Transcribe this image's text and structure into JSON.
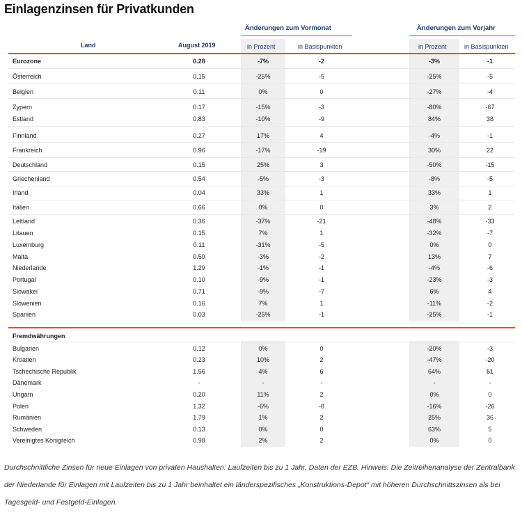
{
  "title": "Einlagenzinsen für Privatkunden",
  "headers": {
    "group_vormonat": "Änderungen zum Vormonat",
    "group_vorjahr": "Änderungen zum Vorjahr",
    "land": "Land",
    "august": "August 2019",
    "vm_prozent": "in Prozent",
    "vm_basis": "in Basispunkten",
    "vj_prozent": "in Prozent",
    "vj_basis": "in Basispunkten"
  },
  "section1": {
    "label": "Eurozone",
    "values": [
      "0.28",
      "-7%",
      "-2",
      "-3%",
      "-1"
    ],
    "rows": [
      [
        "Österreich",
        "0.15",
        "-25%",
        "-5",
        "-25%",
        "-5"
      ],
      [
        "Belgien",
        "0.11",
        "0%",
        "0",
        "-27%",
        "-4"
      ],
      [
        "Zypern",
        "0.17",
        "-15%",
        "-3",
        "-80%",
        "-67"
      ],
      [
        "Estland",
        "0.83",
        "-10%",
        "-9",
        "84%",
        "38"
      ],
      [
        "Finnland",
        "0.27",
        "17%",
        "4",
        "-4%",
        "-1"
      ],
      [
        "Frankreich",
        "0.96",
        "-17%",
        "-19",
        "30%",
        "22"
      ],
      [
        "Deutschland",
        "0.15",
        "25%",
        "3",
        "-50%",
        "-15"
      ],
      [
        "Griechenland",
        "0.54",
        "-5%",
        "-3",
        "-8%",
        "-5"
      ],
      [
        "Irland",
        "0.04",
        "33%",
        "1",
        "33%",
        "1"
      ],
      [
        "Italien",
        "0.66",
        "0%",
        "0",
        "3%",
        "2"
      ],
      [
        "Lettland",
        "0.36",
        "-37%",
        "-21",
        "-48%",
        "-33"
      ],
      [
        "Litauen",
        "0.15",
        "7%",
        "1",
        "-32%",
        "-7"
      ],
      [
        "Luxemburg",
        "0.11",
        "-31%",
        "-5",
        "0%",
        "0"
      ],
      [
        "Malta",
        "0.59",
        "-3%",
        "-2",
        "13%",
        "7"
      ],
      [
        "Niederlande",
        "1.29",
        "-1%",
        "-1",
        "-4%",
        "-6"
      ],
      [
        "Portugal",
        "0.10",
        "-9%",
        "-1",
        "-23%",
        "-3"
      ],
      [
        "Slowakei",
        "0.71",
        "-9%",
        "-7",
        "6%",
        "4"
      ],
      [
        "Slowenien",
        "0.16",
        "7%",
        "1",
        "-11%",
        "-2"
      ],
      [
        "Spanien",
        "0.03",
        "-25%",
        "-1",
        "-25%",
        "-1"
      ]
    ]
  },
  "section2": {
    "label": "Fremdwährungen",
    "rows": [
      [
        "Bulgarien",
        "0.12",
        "0%",
        "0",
        "-20%",
        "-3"
      ],
      [
        "Kroatien",
        "0.23",
        "10%",
        "2",
        "-47%",
        "-20"
      ],
      [
        "Tschechische Republik",
        "1.56",
        "4%",
        "6",
        "64%",
        "61"
      ],
      [
        "Dänemark",
        "-",
        "-",
        "-",
        "-",
        "-"
      ],
      [
        "Ungarn",
        "0.20",
        "11%",
        "2",
        "0%",
        "0"
      ],
      [
        "Polen",
        "1.32",
        "-6%",
        "-8",
        "-16%",
        "-26"
      ],
      [
        "Rumänien",
        "1.79",
        "1%",
        "2",
        "25%",
        "36"
      ],
      [
        "Schweden",
        "0.13",
        "0%",
        "0",
        "63%",
        "5"
      ],
      [
        "Vereinigtes Königreich",
        "0.98",
        "2%",
        "2",
        "0%",
        "0"
      ]
    ]
  },
  "footnote": "Durchschnittliche Zinsen für neue Einlagen von privaten Haushalten: Laufzeiten bis zu 1 Jahr, Daten der EZB. Hinweis: Die Zeitreihenanalyse der Zentralbank der Niederlande für Einlagen mit Laufzeiten bis zu 1 Jahr beinhaltet ein länderspezifisches „Konstruktions-Depot“ mit höheren Durchschnittszinsen als bei Tagesgeld- und Festgeld-Einlagen."
}
